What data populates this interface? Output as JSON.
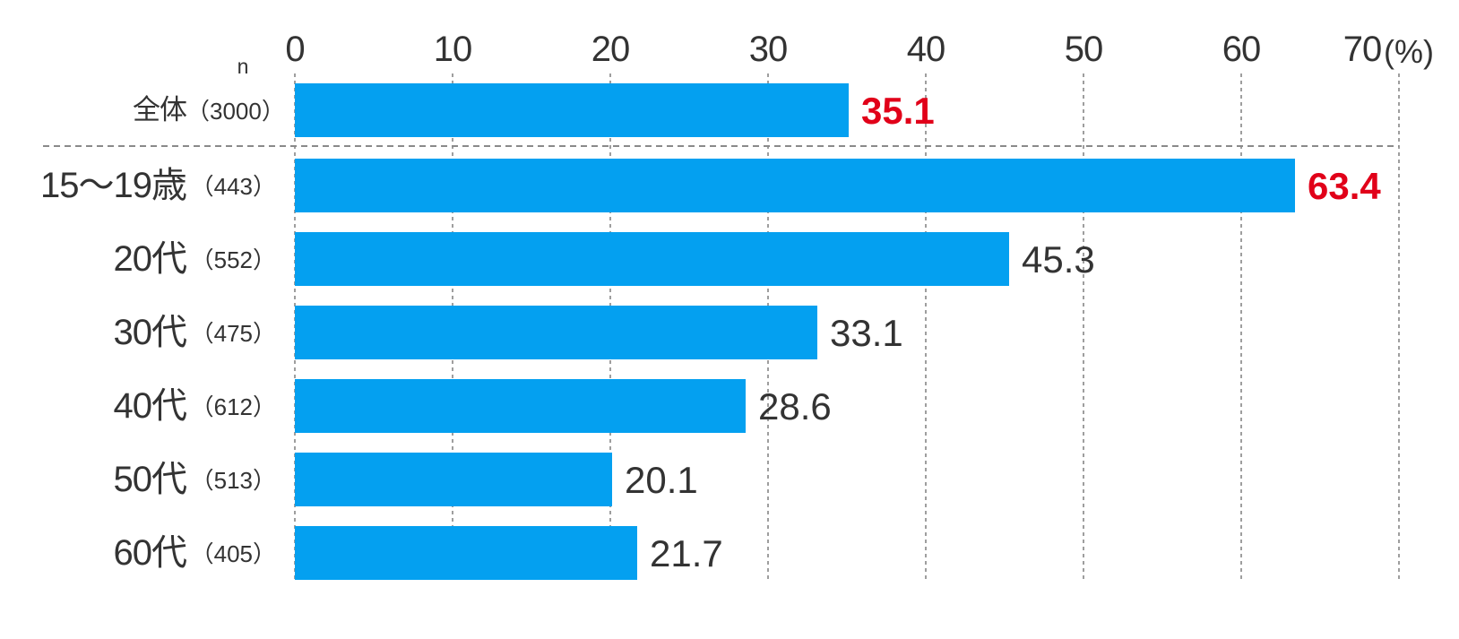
{
  "chart_data": {
    "type": "bar",
    "orientation": "horizontal",
    "title": "",
    "unit_label": "(%)",
    "n_label": "n",
    "x_ticks": [
      0,
      10,
      20,
      30,
      40,
      50,
      60,
      70
    ],
    "xlim": [
      0,
      70
    ],
    "grid": "dashed-vertical",
    "categories": [
      "全体",
      "15～19歳",
      "20代",
      "30代",
      "40代",
      "50代",
      "60代"
    ],
    "rows": [
      {
        "category": "全体",
        "n": "（3000）",
        "value": 35.1,
        "value_label": "35.1",
        "highlight": true
      },
      {
        "category": "15～19歳",
        "n": "（443）",
        "value": 63.4,
        "value_label": "63.4",
        "highlight": true
      },
      {
        "category": "20代",
        "n": "（552）",
        "value": 45.3,
        "value_label": "45.3",
        "highlight": false
      },
      {
        "category": "30代",
        "n": "（475）",
        "value": 33.1,
        "value_label": "33.1",
        "highlight": false
      },
      {
        "category": "40代",
        "n": "（612）",
        "value": 28.6,
        "value_label": "28.6",
        "highlight": false
      },
      {
        "category": "50代",
        "n": "（513）",
        "value": 20.1,
        "value_label": "20.1",
        "highlight": false
      },
      {
        "category": "60代",
        "n": "（405）",
        "value": 21.7,
        "value_label": "21.7",
        "highlight": false
      }
    ]
  },
  "colors": {
    "bar": "#04a0f0",
    "value_highlight": "#e10019",
    "text": "#333333",
    "gridline": "#9e9e9e",
    "separator": "#8a8a8a"
  }
}
